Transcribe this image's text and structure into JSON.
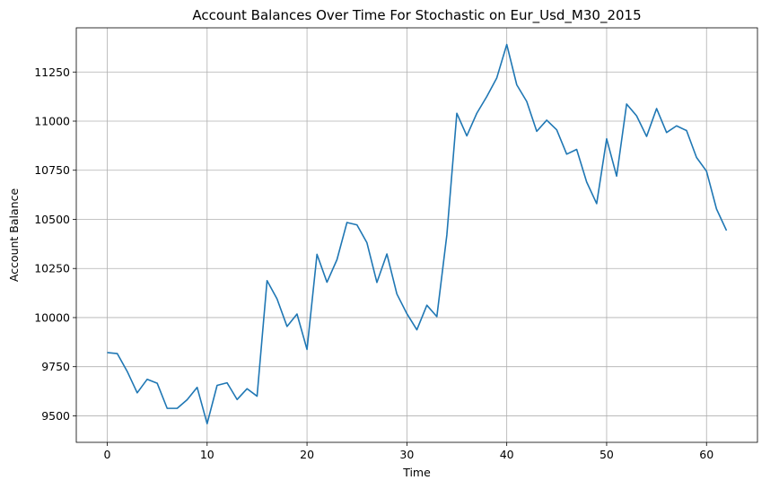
{
  "chart_data": {
    "type": "line",
    "title": "Account Balances Over Time For Stochastic on Eur_Usd_M30_2015",
    "xlabel": "Time",
    "ylabel": "Account Balance",
    "xlim": [
      -3.1,
      65.1
    ],
    "ylim": [
      9365,
      11475
    ],
    "xticks": [
      0,
      10,
      20,
      30,
      40,
      50,
      60
    ],
    "yticks": [
      9500,
      9750,
      10000,
      10250,
      10500,
      10750,
      11000,
      11250
    ],
    "grid": true,
    "line_color": "#1f77b4",
    "series": [
      {
        "x": [
          0,
          1,
          2,
          3,
          4,
          5,
          6,
          7,
          8,
          9,
          10,
          11,
          12,
          13,
          14,
          15,
          16,
          17,
          18,
          19,
          20,
          21,
          22,
          23,
          24,
          25,
          26,
          27,
          28,
          29,
          30,
          31,
          32,
          33,
          34,
          35,
          36,
          37,
          38,
          39,
          40,
          41,
          42,
          43,
          44,
          45,
          46,
          47,
          48,
          49,
          50,
          51,
          52,
          53,
          54,
          55,
          56,
          57,
          58,
          59,
          60,
          61,
          62
        ],
        "values": [
          9822,
          9817,
          9726,
          9617,
          9686,
          9666,
          9538,
          9538,
          9582,
          9645,
          9460,
          9655,
          9668,
          9583,
          9638,
          9600,
          10188,
          10095,
          9955,
          10018,
          9838,
          10322,
          10180,
          10295,
          10484,
          10472,
          10381,
          10179,
          10324,
          10120,
          10020,
          9938,
          10063,
          10005,
          10420,
          11040,
          10925,
          11040,
          11125,
          11220,
          11390,
          11185,
          11100,
          10948,
          11005,
          10956,
          10832,
          10856,
          10690,
          10580,
          10910,
          10720,
          11087,
          11027,
          10922,
          11064,
          10942,
          10976,
          10952,
          10815,
          10745,
          10553,
          10443
        ]
      }
    ]
  }
}
